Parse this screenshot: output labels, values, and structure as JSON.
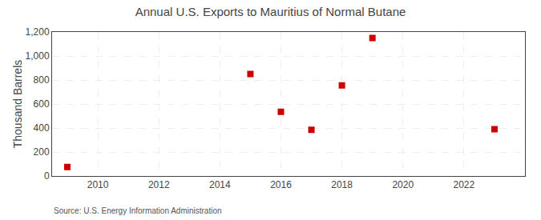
{
  "chart_data": {
    "type": "scatter",
    "title": "Annual U.S. Exports to Mauritius of Normal Butane",
    "ylabel": "Thousand Barrels",
    "annotations": [
      "Source: U.S. Energy Information Administration"
    ],
    "x": [
      2009,
      2015,
      2016,
      2017,
      2018,
      2019,
      2023
    ],
    "values": [
      75,
      850,
      535,
      385,
      755,
      1150,
      390
    ],
    "color": "#cc0000",
    "marker": "square",
    "xlim": [
      2008.5,
      2024
    ],
    "xticks": [
      2010,
      2012,
      2014,
      2016,
      2018,
      2020,
      2022
    ],
    "ylim": [
      0,
      1200
    ],
    "yticks": [
      0,
      200,
      400,
      600,
      800,
      {
        "value": 1000,
        "label": "1,000"
      },
      {
        "value": 1200,
        "label": "1,200"
      }
    ],
    "grid": true
  }
}
